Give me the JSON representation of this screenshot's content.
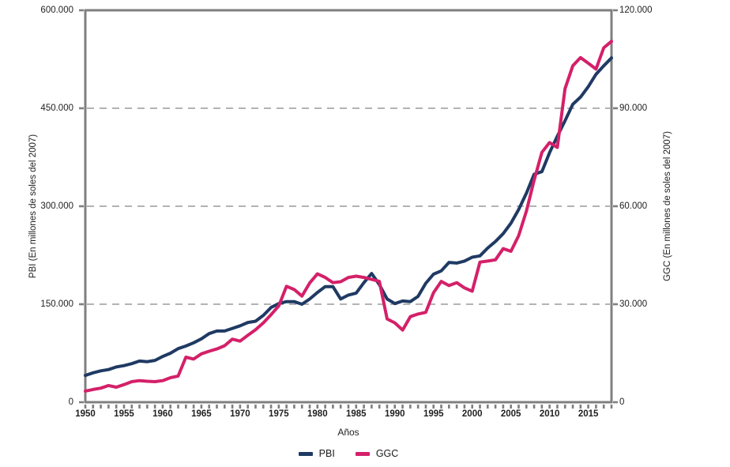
{
  "figure": {
    "y_left": {
      "title": "PBI (En millones de soles del 2007)",
      "ticks": [
        "0",
        "150.000",
        "300.000",
        "450.000",
        "600.000"
      ]
    },
    "y_right": {
      "title": "GGC (En millones de soles del 2007)",
      "ticks": [
        "0",
        "30.000",
        "60.000",
        "90.000",
        "120.000"
      ]
    },
    "x_axis": {
      "title": "Años",
      "tick_labels": [
        "1950",
        "1955",
        "1960",
        "1965",
        "1970",
        "1975",
        "1980",
        "1985",
        "1990",
        "1995",
        "2000",
        "2005",
        "2010",
        "2015"
      ],
      "tick_years": [
        1950,
        1955,
        1960,
        1965,
        1970,
        1975,
        1980,
        1985,
        1990,
        1995,
        2000,
        2005,
        2010,
        2015
      ]
    },
    "legend": [
      {
        "label": "PBI",
        "color": "#1f3a63"
      },
      {
        "label": "GGC",
        "color": "#d42069"
      }
    ],
    "colors": {
      "pbi": "#1f3a63",
      "ggc": "#d42069",
      "axis": "#7f7f7f",
      "grid": "#9a9a9a"
    }
  },
  "chart_data": {
    "type": "line",
    "title": "",
    "xlabel": "Años",
    "ylabel_left": "PBI (En millones de soles del 2007)",
    "ylabel_right": "GGC (En millones de soles del 2007)",
    "xlim": [
      1950,
      2018
    ],
    "ylim_left": [
      0,
      600000
    ],
    "ylim_right": [
      0,
      120000
    ],
    "grid": "horizontal-dashed",
    "legend_position": "bottom-center",
    "x": [
      1950,
      1951,
      1952,
      1953,
      1954,
      1955,
      1956,
      1957,
      1958,
      1959,
      1960,
      1961,
      1962,
      1963,
      1964,
      1965,
      1966,
      1967,
      1968,
      1969,
      1970,
      1971,
      1972,
      1973,
      1974,
      1975,
      1976,
      1977,
      1978,
      1979,
      1980,
      1981,
      1982,
      1983,
      1984,
      1985,
      1986,
      1987,
      1988,
      1989,
      1990,
      1991,
      1992,
      1993,
      1994,
      1995,
      1996,
      1997,
      1998,
      1999,
      2000,
      2001,
      2002,
      2003,
      2004,
      2005,
      2006,
      2007,
      2008,
      2009,
      2010,
      2011,
      2012,
      2013,
      2014,
      2015,
      2016,
      2017,
      2018
    ],
    "series": [
      {
        "name": "PBI",
        "axis": "left",
        "color": "#1f3a63",
        "values": [
          41000,
          45000,
          48000,
          50000,
          54000,
          56000,
          59000,
          63000,
          62000,
          64000,
          70000,
          75000,
          82000,
          86000,
          91000,
          97000,
          105000,
          109000,
          109000,
          113000,
          117000,
          122000,
          124000,
          133000,
          145000,
          151000,
          154000,
          154000,
          150000,
          158000,
          168000,
          177000,
          177000,
          158000,
          164000,
          167000,
          183000,
          197000,
          180000,
          158000,
          151000,
          155000,
          154000,
          162000,
          182000,
          196000,
          201000,
          214000,
          213000,
          216000,
          222000,
          224000,
          236000,
          246000,
          258000,
          274000,
          295000,
          320000,
          349000,
          353000,
          382000,
          407000,
          431000,
          456000,
          467000,
          483000,
          502000,
          515000,
          527000
        ]
      },
      {
        "name": "GGC",
        "axis": "right",
        "color": "#d42069",
        "values": [
          3400,
          3900,
          4300,
          5100,
          4600,
          5400,
          6300,
          6600,
          6400,
          6300,
          6600,
          7500,
          8000,
          13800,
          13200,
          14800,
          15600,
          16300,
          17300,
          19300,
          18700,
          20500,
          22200,
          24300,
          26800,
          29500,
          35500,
          34500,
          32500,
          36500,
          39300,
          38200,
          36600,
          36900,
          38200,
          38600,
          38200,
          37600,
          37000,
          25500,
          24300,
          22100,
          26200,
          27000,
          27500,
          33500,
          37000,
          35700,
          36600,
          35000,
          34000,
          42900,
          43200,
          43600,
          47000,
          46200,
          51000,
          58500,
          68000,
          76500,
          79500,
          78000,
          96000,
          103000,
          105500,
          103800,
          102000,
          108500,
          110500
        ]
      }
    ]
  }
}
